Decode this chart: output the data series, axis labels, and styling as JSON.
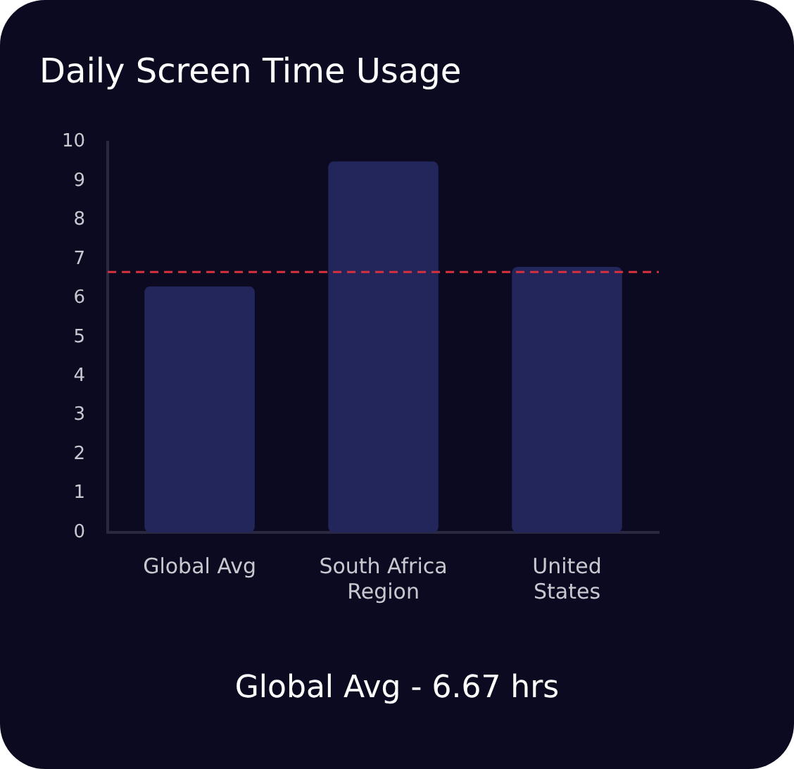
{
  "chart_data": {
    "type": "bar",
    "title": "Daily Screen Time Usage",
    "categories": [
      "Global Avg",
      "South Africa Region",
      "United States"
    ],
    "values": [
      6.3,
      9.5,
      6.8
    ],
    "color": "#22265a",
    "ylim": [
      0,
      10
    ],
    "yticks": [
      0,
      1,
      2,
      3,
      4,
      5,
      6,
      7,
      8,
      9,
      10
    ],
    "grid": false,
    "legend": false,
    "ref_lines": [
      {
        "axis": "y",
        "value": 6.67,
        "color": "#d9303e",
        "line_style": "dashed"
      }
    ],
    "annotations": [
      "Global Avg - 6.67 hrs"
    ]
  }
}
